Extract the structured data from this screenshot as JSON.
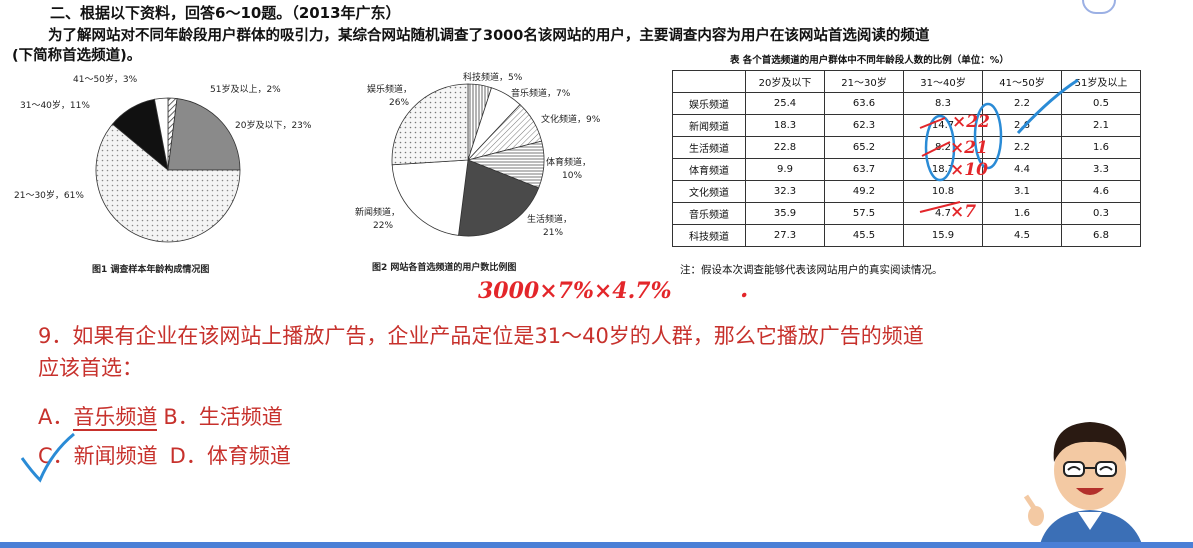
{
  "header": {
    "title": "二、根据以下资料，回答6～10题。（2013年广东）",
    "intro_line1": "为了解网站对不同年龄段用户群体的吸引力，某综合网站随机调查了3000名该网站的用户，主要调查内容为用户在该网站首选阅读的频道",
    "intro_line2": "(下简称首选频道)。"
  },
  "figure1": {
    "caption": "图1  调查样本年龄构成情况图",
    "labels": {
      "a": "41～50岁，3%",
      "b": "51岁及以上，2%",
      "c": "31～40岁，11%",
      "d": "20岁及以下，23%",
      "e": "21～30岁，61%"
    }
  },
  "figure2": {
    "caption": "图2  网站各首选频道的用户数比例图",
    "labels": {
      "ent_name": "娱乐频道，",
      "ent_val": "26%",
      "tech": "科技频道，5%",
      "music": "音乐频道，7%",
      "culture": "文化频道，9%",
      "sports_name": "体育频道，",
      "sports_val": "10%",
      "news_name": "新闻频道，",
      "news_val": "22%",
      "life_name": "生活频道，",
      "life_val": "21%"
    }
  },
  "chart_data": [
    {
      "type": "pie",
      "title": "调查样本年龄构成情况图",
      "categories": [
        "20岁及以下",
        "21～30岁",
        "31～40岁",
        "41～50岁",
        "51岁及以上"
      ],
      "values": [
        23,
        61,
        11,
        3,
        2
      ]
    },
    {
      "type": "pie",
      "title": "网站各首选频道的用户数比例图",
      "categories": [
        "娱乐频道",
        "科技频道",
        "音乐频道",
        "文化频道",
        "体育频道",
        "生活频道",
        "新闻频道"
      ],
      "values": [
        26,
        5,
        7,
        9,
        10,
        21,
        22
      ]
    }
  ],
  "table": {
    "caption": "表  各个首选频道的用户群体中不同年龄段人数的比例（单位：%）",
    "columns": [
      "",
      "20岁及以下",
      "21～30岁",
      "31～40岁",
      "41～50岁",
      "51岁及以上"
    ],
    "rows": [
      [
        "娱乐频道",
        "25.4",
        "63.6",
        "8.3",
        "2.2",
        "0.5"
      ],
      [
        "新闻频道",
        "18.3",
        "62.3",
        "14.7",
        "2.6",
        "2.1"
      ],
      [
        "生活频道",
        "22.8",
        "65.2",
        "8.2",
        "2.2",
        "1.6"
      ],
      [
        "体育频道",
        "9.9",
        "63.7",
        "18.7",
        "4.4",
        "3.3"
      ],
      [
        "文化频道",
        "32.3",
        "49.2",
        "10.8",
        "3.1",
        "4.6"
      ],
      [
        "音乐频道",
        "35.9",
        "57.5",
        "4.7",
        "1.6",
        "0.3"
      ],
      [
        "科技频道",
        "27.3",
        "45.5",
        "15.9",
        "4.5",
        "6.8"
      ]
    ],
    "note": "注：假设本次调查能够代表该网站用户的真实阅读情况。"
  },
  "annotations": {
    "formula": "3000×7%×4.7%",
    "dot": ".",
    "x22": "×22",
    "x21": "×21",
    "x10": "×10",
    "x7": "×7",
    "colors": {
      "red": "#e3262a",
      "blue": "#2a8bd6"
    }
  },
  "question": {
    "line1": "9．如果有企业在该网站上播放广告，企业产品定位是31～40岁的人群，那么它播放广告的频道",
    "line2": "应该首选：",
    "optA_letter": "A．",
    "optA_text": "音乐频道",
    "optB": "B．生活频道",
    "optC_letter": "C．",
    "optC_text": "新闻频道",
    "optD": "D．体育频道",
    "text_color": "#c7312c"
  }
}
